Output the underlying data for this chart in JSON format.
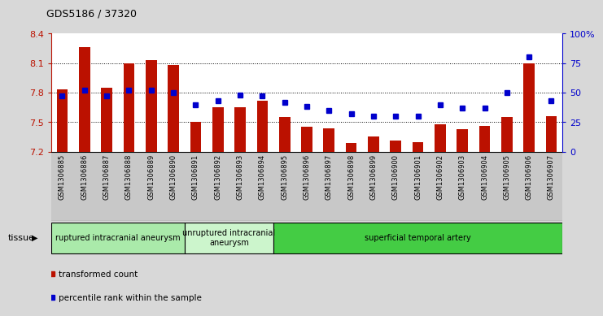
{
  "title": "GDS5186 / 37320",
  "samples": [
    "GSM1306885",
    "GSM1306886",
    "GSM1306887",
    "GSM1306888",
    "GSM1306889",
    "GSM1306890",
    "GSM1306891",
    "GSM1306892",
    "GSM1306893",
    "GSM1306894",
    "GSM1306895",
    "GSM1306896",
    "GSM1306897",
    "GSM1306898",
    "GSM1306899",
    "GSM1306900",
    "GSM1306901",
    "GSM1306902",
    "GSM1306903",
    "GSM1306904",
    "GSM1306905",
    "GSM1306906",
    "GSM1306907"
  ],
  "bar_values": [
    7.83,
    8.26,
    7.85,
    8.1,
    8.13,
    8.08,
    7.5,
    7.65,
    7.65,
    7.72,
    7.55,
    7.45,
    7.44,
    7.29,
    7.35,
    7.31,
    7.3,
    7.48,
    7.43,
    7.46,
    7.55,
    8.1,
    7.56
  ],
  "dot_values_pct": [
    47,
    52,
    47,
    52,
    52,
    50,
    40,
    43,
    48,
    47,
    42,
    38,
    35,
    32,
    30,
    30,
    30,
    40,
    37,
    37,
    50,
    80,
    43
  ],
  "groups": [
    {
      "label": "ruptured intracranial aneurysm",
      "start": 0,
      "end": 5,
      "color": "#aaeaaa"
    },
    {
      "label": "unruptured intracranial\naneurysm",
      "start": 6,
      "end": 9,
      "color": "#ccf5cc"
    },
    {
      "label": "superficial temporal artery",
      "start": 10,
      "end": 22,
      "color": "#33cc33"
    }
  ],
  "bar_color": "#bb1100",
  "dot_color": "#0000cc",
  "ylim_left": [
    7.2,
    8.4
  ],
  "ylim_right": [
    0,
    100
  ],
  "yticks_left": [
    7.2,
    7.5,
    7.8,
    8.1,
    8.4
  ],
  "ytick_labels_left": [
    "7.2",
    "7.5",
    "7.8",
    "8.1",
    "8.4"
  ],
  "yticks_right": [
    0,
    25,
    50,
    75,
    100
  ],
  "ytick_labels_right": [
    "0",
    "25",
    "50",
    "75",
    "100%"
  ],
  "grid_values": [
    7.5,
    7.8,
    8.1
  ],
  "tissue_label": "tissue",
  "legend_bar_label": "transformed count",
  "legend_dot_label": "percentile rank within the sample",
  "bg_color": "#d8d8d8",
  "plot_bg_color": "#ffffff",
  "xticklabel_bg": "#cccccc"
}
